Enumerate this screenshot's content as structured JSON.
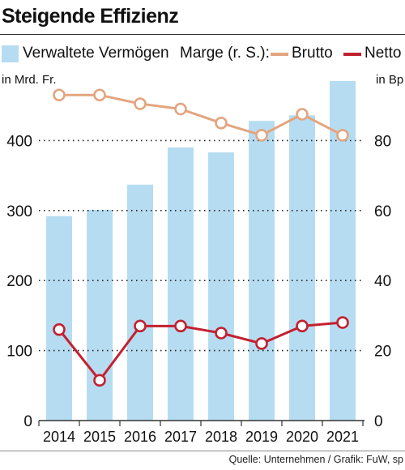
{
  "title": "Steigende Effizienz",
  "legend": {
    "bars_label": "Verwaltete Vermögen",
    "margin_label": "Marge (r. S.):",
    "brutto_label": "Brutto",
    "netto_label": "Netto"
  },
  "left_unit": "in Mrd. Fr.",
  "right_unit": "in Bp",
  "source": "Quelle: Unternehmen / Grafik: FuW, sp",
  "colors": {
    "bars": "#b6dcf1",
    "brutto": "#e3a57f",
    "netto": "#c3202f",
    "axis": "#333333"
  },
  "chart_data": {
    "type": "bar",
    "categories": [
      "2014",
      "2015",
      "2016",
      "2017",
      "2018",
      "2019",
      "2020",
      "2021"
    ],
    "series": [
      {
        "name": "Verwaltete Vermögen",
        "axis": "left",
        "type": "bar",
        "values": [
          292,
          301,
          337,
          390,
          383,
          428,
          436,
          485
        ]
      },
      {
        "name": "Brutto",
        "axis": "right",
        "type": "line",
        "values": [
          93,
          93,
          90.5,
          89,
          85,
          81.5,
          87.5,
          81.5
        ]
      },
      {
        "name": "Netto",
        "axis": "right",
        "type": "line",
        "values": [
          26,
          11.5,
          27,
          27,
          25,
          22,
          27,
          28
        ]
      }
    ],
    "left_axis": {
      "ylim": [
        0,
        500
      ],
      "ticks": [
        0,
        100,
        200,
        300,
        400
      ],
      "label": "in Mrd. Fr."
    },
    "right_axis": {
      "ylim": [
        0,
        100
      ],
      "ticks": [
        0,
        20,
        40,
        60,
        80
      ],
      "label": "in Bp"
    },
    "grid": "dotted horizontal",
    "legend_position": "top"
  }
}
